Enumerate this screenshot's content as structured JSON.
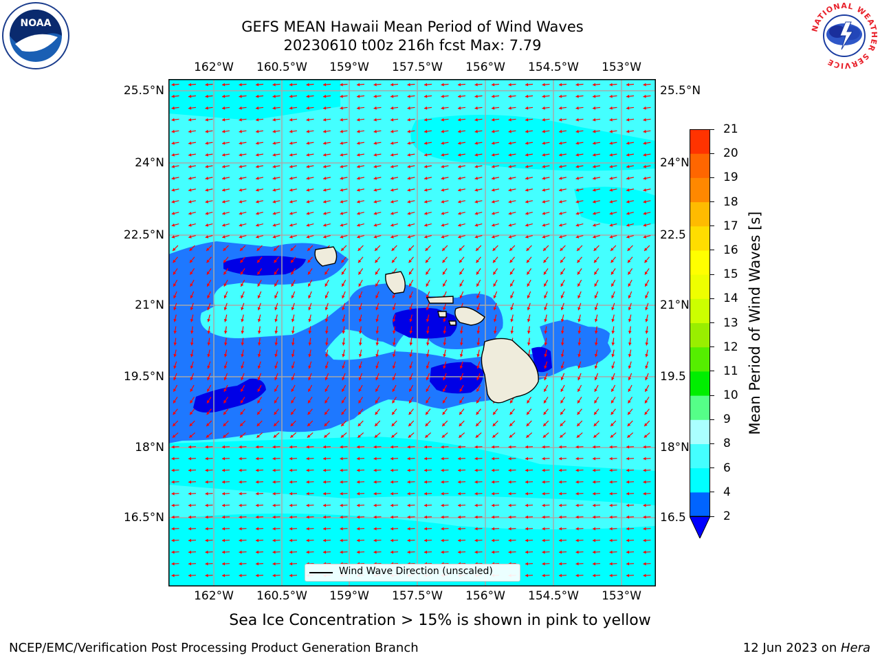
{
  "title": {
    "line1": "GEFS MEAN Hawaii Mean Period of Wind Waves",
    "line2": "20230610 t00z 216h fcst   Max: 7.79"
  },
  "logos": {
    "left": "NOAA",
    "left_ring": "NATIONAL OCEANIC AND ATMOSPHERIC ADMINISTRATION · U.S. DEPARTMENT OF COMMERCE",
    "right": "NATIONAL WEATHER SERVICE"
  },
  "map": {
    "lon_ticks": [
      "162°W",
      "160.5°W",
      "159°W",
      "157.5°W",
      "156°W",
      "154.5°W",
      "153°W"
    ],
    "lat_ticks_left": [
      "25.5°N",
      "24°N",
      "22.5°N",
      "21°N",
      "19.5°N",
      "18°N",
      "16.5°N"
    ],
    "lat_ticks_right": [
      "25.5°N",
      "24°N",
      "22.5",
      "21°N",
      "19.5",
      "18°N",
      "16.5"
    ],
    "legend_label": "Wind Wave Direction (unscaled)",
    "colors": {
      "cyan_6_8": "#44ffff",
      "cyan_4_6": "#00ffff",
      "blue_2_4": "#1e78ff",
      "blue_lt2": "#0000e6",
      "land": "#efecdc",
      "arrows": "#ff0000",
      "grid": "#a8a8a8"
    }
  },
  "colorbar": {
    "label": "Mean Period of Wind Waves [s]",
    "ticks": [
      "2",
      "4",
      "6",
      "8",
      "9",
      "10",
      "11",
      "12",
      "13",
      "14",
      "15",
      "16",
      "17",
      "18",
      "19",
      "20",
      "21"
    ],
    "colors": [
      "#0064ff",
      "#00ffff",
      "#44ffff",
      "#aaffff",
      "#55ff88",
      "#00ee00",
      "#55ee00",
      "#99ee00",
      "#ccff00",
      "#eeff00",
      "#ffff00",
      "#ffdd00",
      "#ffbb00",
      "#ff8800",
      "#ff6600",
      "#ff3300"
    ],
    "under_color": "#0000ff"
  },
  "subnote": "Sea Ice Concentration > 15% is shown in pink to yellow",
  "footer": {
    "left": "NCEP/EMC/Verification Post Processing Product Generation Branch",
    "right_date": "12 Jun 2023 on ",
    "right_host": "Hera"
  }
}
